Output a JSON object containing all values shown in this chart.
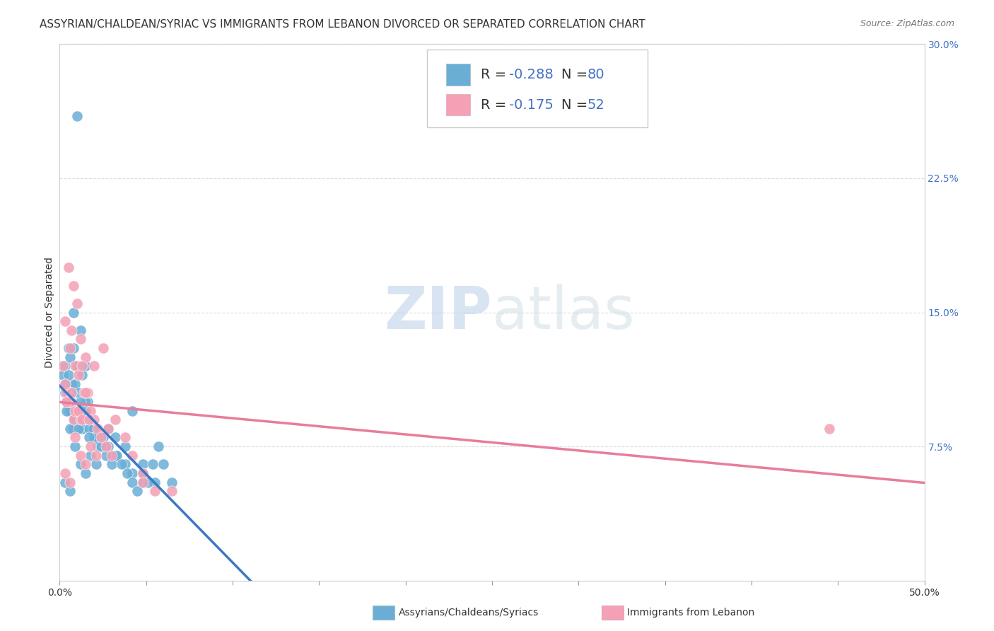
{
  "title": "ASSYRIAN/CHALDEAN/SYRIAC VS IMMIGRANTS FROM LEBANON DIVORCED OR SEPARATED CORRELATION CHART",
  "source": "Source: ZipAtlas.com",
  "ylabel": "Divorced or Separated",
  "xlim": [
    0,
    0.5
  ],
  "ylim": [
    0,
    0.3
  ],
  "yticks_right": [
    0.075,
    0.15,
    0.225,
    0.3
  ],
  "ytick_labels_right": [
    "7.5%",
    "15.0%",
    "22.5%",
    "30.0%"
  ],
  "legend_r1": "-0.288",
  "legend_n1": "80",
  "legend_r2": "-0.175",
  "legend_n2": "52",
  "blue_color": "#6aaed6",
  "pink_color": "#f4a0b5",
  "blue_line_color": "#3b78c3",
  "pink_line_color": "#e87d9a",
  "dashed_line_color": "#aac8e0",
  "title_fontsize": 11,
  "axis_label_fontsize": 10,
  "tick_fontsize": 10,
  "watermark_zip": "ZIP",
  "watermark_atlas": "atlas",
  "blue_scatter_x": [
    0.01,
    0.005,
    0.008,
    0.012,
    0.015,
    0.007,
    0.003,
    0.006,
    0.009,
    0.011,
    0.014,
    0.002,
    0.004,
    0.013,
    0.016,
    0.018,
    0.02,
    0.025,
    0.008,
    0.01,
    0.005,
    0.007,
    0.003,
    0.015,
    0.012,
    0.009,
    0.006,
    0.004,
    0.011,
    0.013,
    0.02,
    0.017,
    0.022,
    0.028,
    0.032,
    0.038,
    0.042,
    0.048,
    0.055,
    0.065,
    0.008,
    0.01,
    0.005,
    0.007,
    0.003,
    0.015,
    0.012,
    0.009,
    0.006,
    0.004,
    0.011,
    0.013,
    0.02,
    0.017,
    0.022,
    0.028,
    0.032,
    0.038,
    0.042,
    0.048,
    0.003,
    0.006,
    0.009,
    0.012,
    0.015,
    0.018,
    0.021,
    0.024,
    0.027,
    0.03,
    0.033,
    0.036,
    0.039,
    0.042,
    0.045,
    0.048,
    0.051,
    0.054,
    0.057,
    0.06
  ],
  "blue_scatter_y": [
    0.26,
    0.13,
    0.15,
    0.14,
    0.12,
    0.11,
    0.12,
    0.125,
    0.11,
    0.105,
    0.095,
    0.115,
    0.1,
    0.115,
    0.1,
    0.09,
    0.085,
    0.08,
    0.085,
    0.09,
    0.095,
    0.1,
    0.105,
    0.1,
    0.085,
    0.09,
    0.095,
    0.095,
    0.09,
    0.085,
    0.085,
    0.085,
    0.08,
    0.085,
    0.08,
    0.075,
    0.095,
    0.065,
    0.055,
    0.055,
    0.13,
    0.12,
    0.115,
    0.105,
    0.11,
    0.095,
    0.1,
    0.09,
    0.085,
    0.1,
    0.085,
    0.095,
    0.08,
    0.08,
    0.075,
    0.075,
    0.07,
    0.065,
    0.06,
    0.06,
    0.055,
    0.05,
    0.075,
    0.065,
    0.06,
    0.07,
    0.065,
    0.075,
    0.07,
    0.065,
    0.07,
    0.065,
    0.06,
    0.055,
    0.05,
    0.055,
    0.055,
    0.065,
    0.075,
    0.065
  ],
  "pink_scatter_x": [
    0.005,
    0.008,
    0.01,
    0.007,
    0.003,
    0.012,
    0.015,
    0.006,
    0.009,
    0.011,
    0.014,
    0.002,
    0.004,
    0.013,
    0.016,
    0.018,
    0.02,
    0.025,
    0.008,
    0.01,
    0.005,
    0.007,
    0.003,
    0.015,
    0.012,
    0.009,
    0.006,
    0.004,
    0.011,
    0.013,
    0.02,
    0.017,
    0.022,
    0.028,
    0.032,
    0.038,
    0.042,
    0.048,
    0.055,
    0.065,
    0.003,
    0.006,
    0.009,
    0.012,
    0.015,
    0.018,
    0.021,
    0.024,
    0.027,
    0.03,
    0.048,
    0.445
  ],
  "pink_scatter_y": [
    0.175,
    0.165,
    0.155,
    0.14,
    0.145,
    0.135,
    0.125,
    0.13,
    0.12,
    0.115,
    0.105,
    0.12,
    0.105,
    0.12,
    0.105,
    0.095,
    0.12,
    0.13,
    0.09,
    0.095,
    0.1,
    0.105,
    0.11,
    0.105,
    0.09,
    0.095,
    0.1,
    0.1,
    0.095,
    0.09,
    0.09,
    0.09,
    0.085,
    0.085,
    0.09,
    0.08,
    0.07,
    0.06,
    0.05,
    0.05,
    0.06,
    0.055,
    0.08,
    0.07,
    0.065,
    0.075,
    0.07,
    0.08,
    0.075,
    0.07,
    0.055,
    0.085
  ],
  "background_color": "#ffffff",
  "grid_color": "#dddddd"
}
